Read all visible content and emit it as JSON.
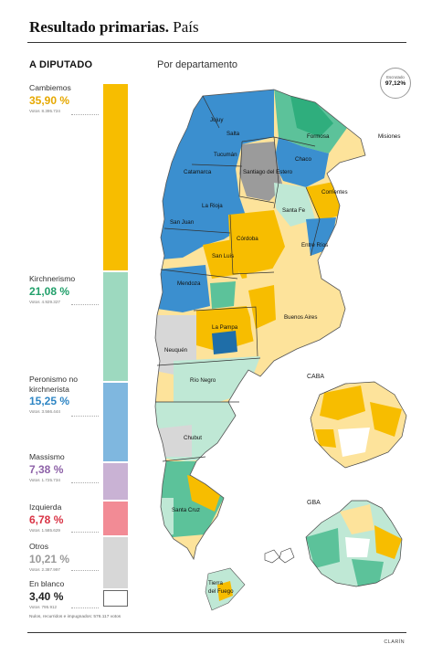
{
  "header": {
    "title_bold": "Resultado primarias.",
    "title_rest": " País"
  },
  "section_label": "A DIPUTADO",
  "map_subtitle": "Por departamento",
  "badge": {
    "label": "Escrutado",
    "value": "97,12%"
  },
  "votes_label": "Votos",
  "parties": [
    {
      "name": "Cambiemos",
      "pct": "35,90 %",
      "votes": "8.395.724",
      "color": "#f7bd00",
      "share": 0.359
    },
    {
      "name": "Kirchnerismo",
      "pct": "21,08 %",
      "votes": "4.929.327",
      "color": "#9dd9bf",
      "share": 0.2108
    },
    {
      "name": "Peronismo no kirchnerista",
      "pct": "15,25 %",
      "votes": "3.566.444",
      "color": "#7fb7df",
      "share": 0.1525
    },
    {
      "name": "Massismo",
      "pct": "7,38 %",
      "votes": "1.725.734",
      "color": "#c9b2d4",
      "share": 0.0738
    },
    {
      "name": "Izquierda",
      "pct": "6,78 %",
      "votes": "1.585.629",
      "color": "#f28b95",
      "share": 0.0678
    },
    {
      "name": "Otros",
      "pct": "10,21 %",
      "votes": "2.387.997",
      "color": "#d7d7d7",
      "share": 0.1021
    },
    {
      "name": "En blanco",
      "pct": "3,40 %",
      "votes": "795.912",
      "color": "#ffffff",
      "share": 0.034
    }
  ],
  "pct_colors": [
    "#e6a800",
    "#22a06b",
    "#2f86c4",
    "#8e62a8",
    "#d93345",
    "#9a9a9a",
    "#222222"
  ],
  "footnote": "Nulos, recurridos e impugnados: 576.117 votos",
  "source": "CLARÍN",
  "map": {
    "legend_colors": {
      "cambiemos": "#f7bd00",
      "cambiemos_light": "#fde39b",
      "kirchnerismo": "#5cc29a",
      "kirchnerismo_light": "#bfe8d5",
      "peronismo": "#3b8fcf",
      "peronismo_dark": "#1f6ea8",
      "massismo": "#c9b2d4",
      "otros": "#d7d7d7",
      "otros_dark": "#9b9b9b"
    },
    "provinces": [
      "Jujuy",
      "Salta",
      "Formosa",
      "Tucumán",
      "Chaco",
      "Catamarca",
      "Santiago del Estero",
      "Misiones",
      "Corrientes",
      "La Rioja",
      "Santa Fe",
      "San Juan",
      "Córdoba",
      "Entre Ríos",
      "San Luis",
      "Mendoza",
      "Buenos Aires",
      "La Pampa",
      "Neuquén",
      "Río Negro",
      "Chubut",
      "Santa Cruz",
      "Tierra del Fuego"
    ],
    "insets": [
      "CABA",
      "GBA"
    ]
  }
}
